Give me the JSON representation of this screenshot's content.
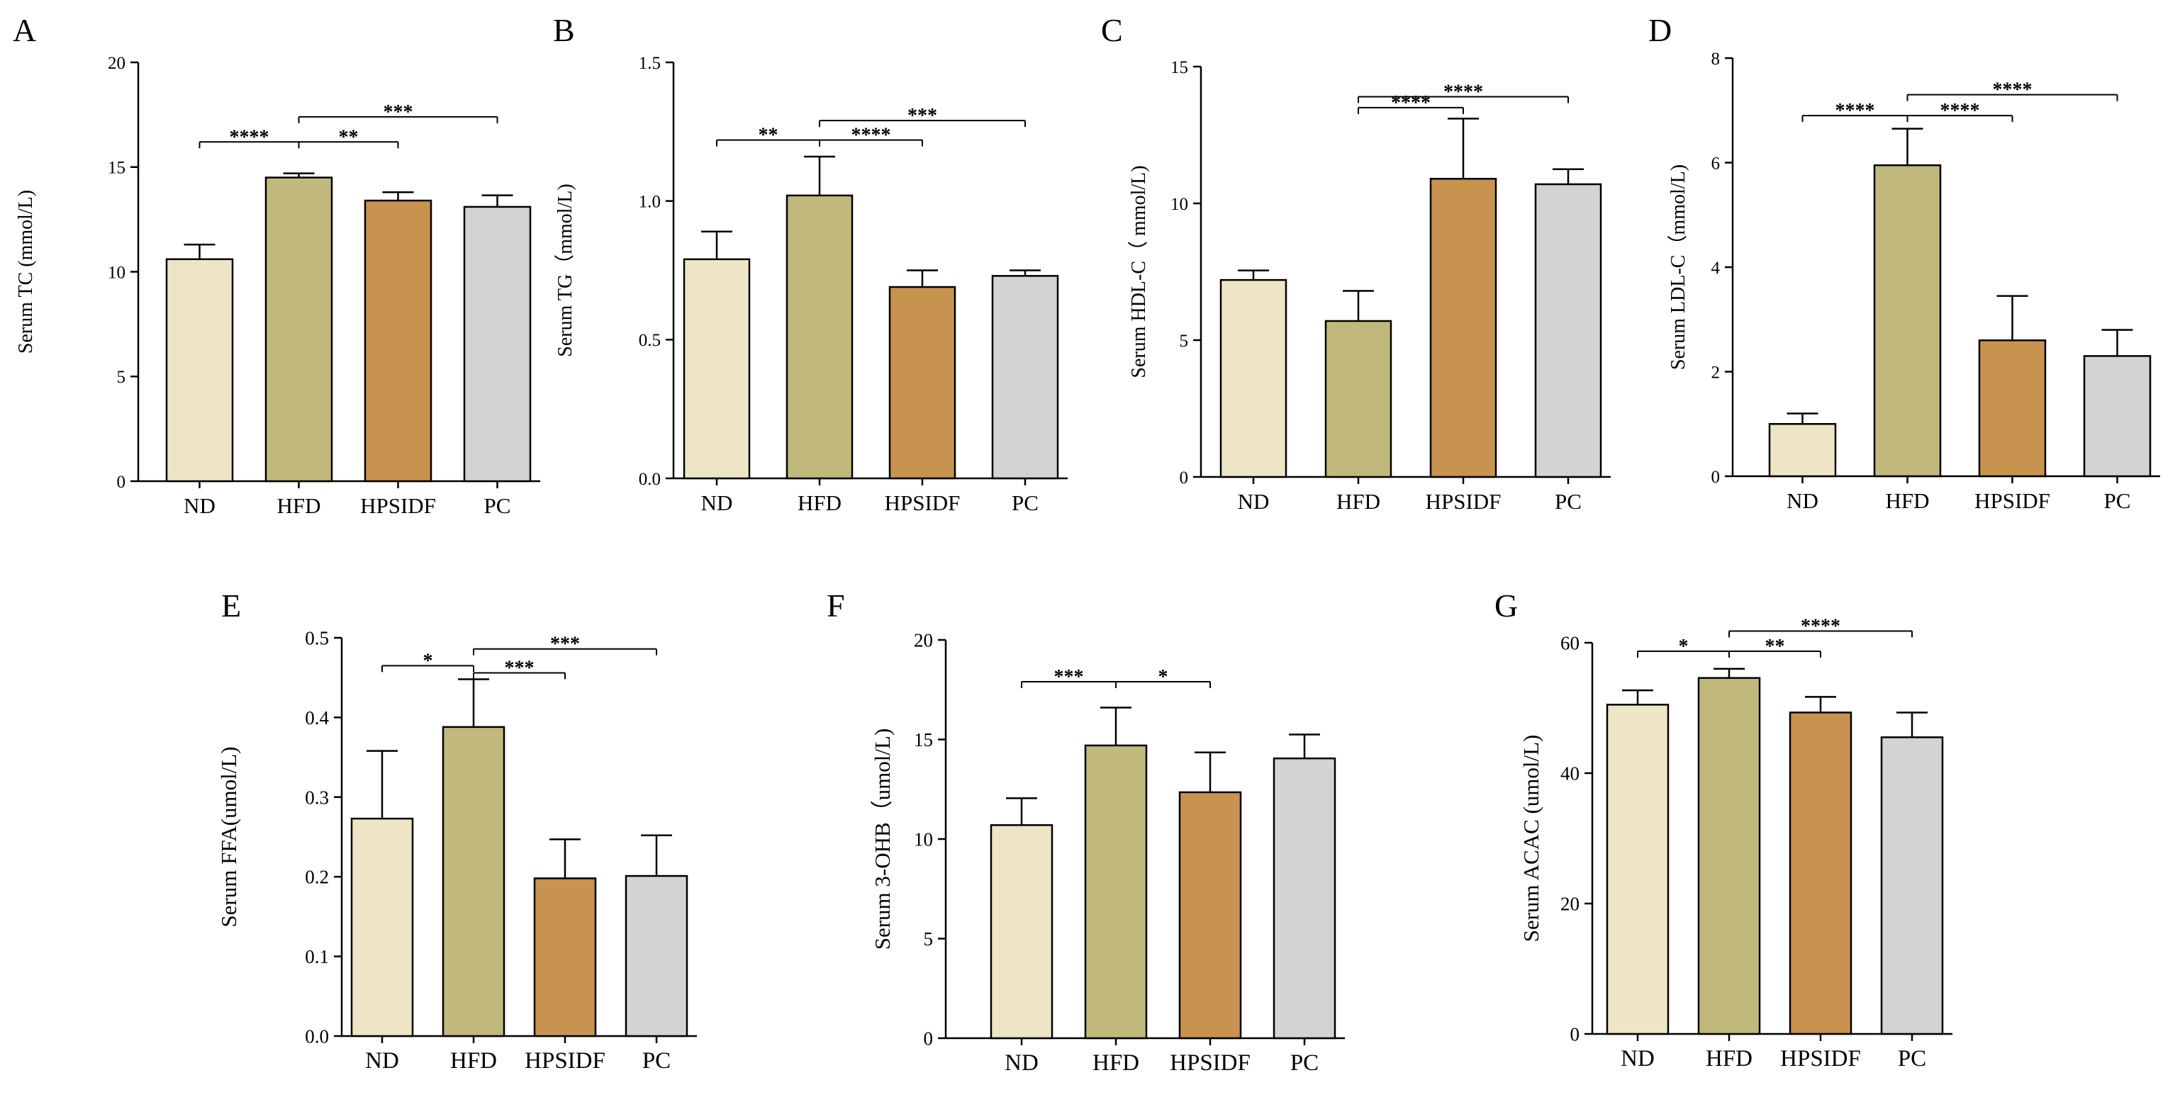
{
  "colors": {
    "ND": "#ede5c6",
    "HFD": "#c1b97c",
    "HPSIDF": "#c8934f",
    "PC": "#d3d3d3",
    "stroke": "#000000"
  },
  "chart_data": [
    {
      "panel": "A",
      "type": "bar",
      "categories": [
        "ND",
        "HFD",
        "HPSIDF",
        "PC"
      ],
      "values": [
        10.6,
        14.5,
        13.4,
        13.1
      ],
      "errors": [
        0.7,
        0.2,
        0.4,
        0.55
      ],
      "ylabel": "Serum TC (mmol/L)",
      "ylim": [
        0,
        20
      ],
      "yticks": [
        0,
        5,
        10,
        15,
        20
      ],
      "ytick_labels": [
        "0",
        "5",
        "10",
        "15",
        "20"
      ],
      "significance": [
        {
          "from": 0,
          "to": 1,
          "label": "****",
          "y": 16.2
        },
        {
          "from": 1,
          "to": 2,
          "label": "**",
          "y": 16.2
        },
        {
          "from": 1,
          "to": 3,
          "label": "***",
          "y": 17.4
        }
      ]
    },
    {
      "panel": "B",
      "type": "bar",
      "categories": [
        "ND",
        "HFD",
        "HPSIDF",
        "PC"
      ],
      "values": [
        0.79,
        1.02,
        0.69,
        0.73
      ],
      "errors": [
        0.1,
        0.14,
        0.06,
        0.02
      ],
      "ylabel": "Serum TG（mmol/L)",
      "ylim": [
        0,
        1.5
      ],
      "yticks": [
        0,
        0.5,
        1.0,
        1.5
      ],
      "ytick_labels": [
        "0.0",
        "0.5",
        "1.0",
        "1.5"
      ],
      "significance": [
        {
          "from": 0,
          "to": 1,
          "label": "**",
          "y": 1.22
        },
        {
          "from": 1,
          "to": 2,
          "label": "****",
          "y": 1.22
        },
        {
          "from": 1,
          "to": 3,
          "label": "***",
          "y": 1.29
        }
      ]
    },
    {
      "panel": "C",
      "type": "bar",
      "categories": [
        "ND",
        "HFD",
        "HPSIDF",
        "PC"
      ],
      "values": [
        7.2,
        5.7,
        10.9,
        10.7
      ],
      "errors": [
        0.35,
        1.1,
        2.2,
        0.55
      ],
      "ylabel": "Serum HDL-C（ mmol/L)",
      "ylim": [
        0,
        15
      ],
      "yticks": [
        0,
        5,
        10,
        15
      ],
      "ytick_labels": [
        "0",
        "5",
        "10",
        "15"
      ],
      "significance": [
        {
          "from": 1,
          "to": 2,
          "label": "****",
          "y": 13.5
        },
        {
          "from": 1,
          "to": 3,
          "label": "****",
          "y": 13.9
        }
      ]
    },
    {
      "panel": "D",
      "type": "bar",
      "categories": [
        "ND",
        "HFD",
        "HPSIDF",
        "PC"
      ],
      "values": [
        1.0,
        5.95,
        2.6,
        2.3
      ],
      "errors": [
        0.2,
        0.7,
        0.85,
        0.5
      ],
      "ylabel": "Serum LDL-C（mmol/L)",
      "ylim": [
        0,
        8
      ],
      "yticks": [
        0,
        2,
        4,
        6,
        8
      ],
      "ytick_labels": [
        "0",
        "2",
        "4",
        "6",
        "8"
      ],
      "significance": [
        {
          "from": 0,
          "to": 1,
          "label": "****",
          "y": 6.9
        },
        {
          "from": 1,
          "to": 2,
          "label": "****",
          "y": 6.9
        },
        {
          "from": 1,
          "to": 3,
          "label": "****",
          "y": 7.3
        }
      ]
    },
    {
      "panel": "E",
      "type": "bar",
      "categories": [
        "ND",
        "HFD",
        "HPSIDF",
        "PC"
      ],
      "values": [
        0.273,
        0.388,
        0.198,
        0.201
      ],
      "errors": [
        0.085,
        0.06,
        0.049,
        0.051
      ],
      "ylabel": "Serum FFA(umol/L)",
      "ylim": [
        0,
        0.5
      ],
      "yticks": [
        0,
        0.1,
        0.2,
        0.3,
        0.4,
        0.5
      ],
      "ytick_labels": [
        "0.0",
        "0.1",
        "0.2",
        "0.3",
        "0.4",
        "0.5"
      ],
      "significance": [
        {
          "from": 0,
          "to": 1,
          "label": "*",
          "y": 0.465
        },
        {
          "from": 1,
          "to": 2,
          "label": "***",
          "y": 0.456
        },
        {
          "from": 1,
          "to": 3,
          "label": "***",
          "y": 0.486
        }
      ]
    },
    {
      "panel": "F",
      "type": "bar",
      "categories": [
        "ND",
        "HFD",
        "HPSIDF",
        "PC"
      ],
      "values": [
        10.7,
        14.7,
        12.35,
        14.05
      ],
      "errors": [
        1.35,
        1.9,
        2.0,
        1.2
      ],
      "ylabel": "Serum 3-OHB（umol/L)",
      "ylim": [
        0,
        20
      ],
      "yticks": [
        0,
        5,
        10,
        15,
        20
      ],
      "ytick_labels": [
        "0",
        "5",
        "10",
        "15",
        "20"
      ],
      "significance": [
        {
          "from": 0,
          "to": 1,
          "label": "***",
          "y": 17.9
        },
        {
          "from": 1,
          "to": 2,
          "label": "*",
          "y": 17.9
        }
      ]
    },
    {
      "panel": "G",
      "type": "bar",
      "categories": [
        "ND",
        "HFD",
        "HPSIDF",
        "PC"
      ],
      "values": [
        50.5,
        54.6,
        49.3,
        45.5
      ],
      "errors": [
        2.2,
        1.4,
        2.4,
        3.8
      ],
      "ylabel": "Serum ACAC (umol/L)",
      "ylim": [
        0,
        60
      ],
      "yticks": [
        0,
        20,
        40,
        60
      ],
      "ytick_labels": [
        "0",
        "20",
        "40",
        "60"
      ],
      "significance": [
        {
          "from": 0,
          "to": 1,
          "label": "*",
          "y": 58.7
        },
        {
          "from": 1,
          "to": 2,
          "label": "**",
          "y": 58.7
        },
        {
          "from": 1,
          "to": 3,
          "label": "****",
          "y": 61.8
        }
      ]
    }
  ]
}
